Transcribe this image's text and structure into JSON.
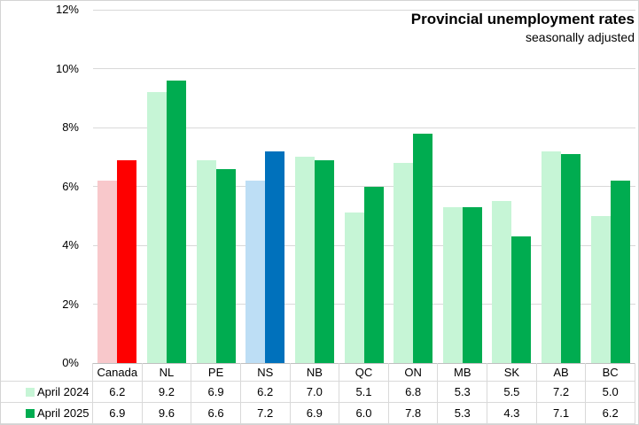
{
  "title": "Provincial unemployment rates",
  "subtitle": "seasonally adjusted",
  "chart_data": {
    "type": "bar",
    "categories": [
      "Canada",
      "NL",
      "PE",
      "NS",
      "NB",
      "QC",
      "ON",
      "MB",
      "SK",
      "AB",
      "BC"
    ],
    "series": [
      {
        "name": "April 2024",
        "values": [
          6.2,
          9.2,
          6.9,
          6.2,
          7.0,
          5.1,
          6.8,
          5.3,
          5.5,
          7.2,
          5.0
        ]
      },
      {
        "name": "April 2025",
        "values": [
          6.9,
          9.6,
          6.6,
          7.2,
          6.9,
          6.0,
          7.8,
          5.3,
          4.3,
          7.1,
          6.2
        ]
      }
    ],
    "ylim": [
      0,
      12
    ],
    "ytick_step": 2,
    "yticks": [
      "0%",
      "2%",
      "4%",
      "6%",
      "8%",
      "10%",
      "12%"
    ],
    "grid": true,
    "legend_position": "data-table-left",
    "colors": {
      "default": {
        "s1": "#C6F5D6",
        "s2": "#00AC50"
      },
      "Canada": {
        "s1": "#F8C8CB",
        "s2": "#FE0000"
      },
      "NS": {
        "s1": "#BDDEF5",
        "s2": "#0071BC"
      }
    }
  }
}
